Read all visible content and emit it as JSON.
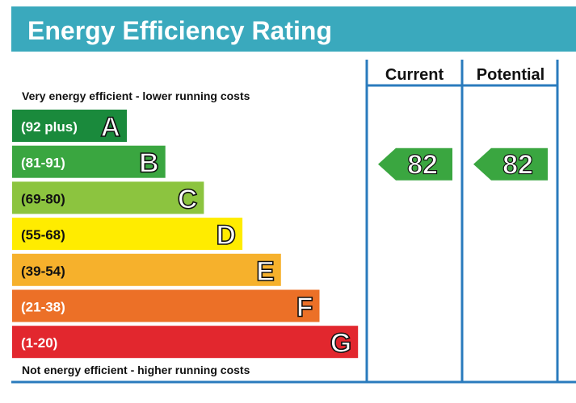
{
  "chart_data": {
    "type": "bar",
    "title": "Energy Efficiency Rating",
    "top_note": "Very energy efficient - lower running costs",
    "bottom_note": "Not energy efficient - higher running costs",
    "columns": [
      "Current",
      "Potential"
    ],
    "bands": [
      {
        "range": "(92 plus)",
        "letter": "A",
        "color": "#1a8a3c"
      },
      {
        "range": "(81-91)",
        "letter": "B",
        "color": "#3aa640"
      },
      {
        "range": "(69-80)",
        "letter": "C",
        "color": "#8cc43f"
      },
      {
        "range": "(55-68)",
        "letter": "D",
        "color": "#ffec00"
      },
      {
        "range": "(39-54)",
        "letter": "E",
        "color": "#f6b12c"
      },
      {
        "range": "(21-38)",
        "letter": "F",
        "color": "#ec7027"
      },
      {
        "range": "(1-20)",
        "letter": "G",
        "color": "#e2272e"
      }
    ],
    "current": {
      "value": 82,
      "band": "B"
    },
    "potential": {
      "value": 82,
      "band": "B"
    },
    "colors": {
      "header": "#3aa9bd",
      "frame": "#2a7bbd",
      "arrow": "#3aa640"
    }
  }
}
